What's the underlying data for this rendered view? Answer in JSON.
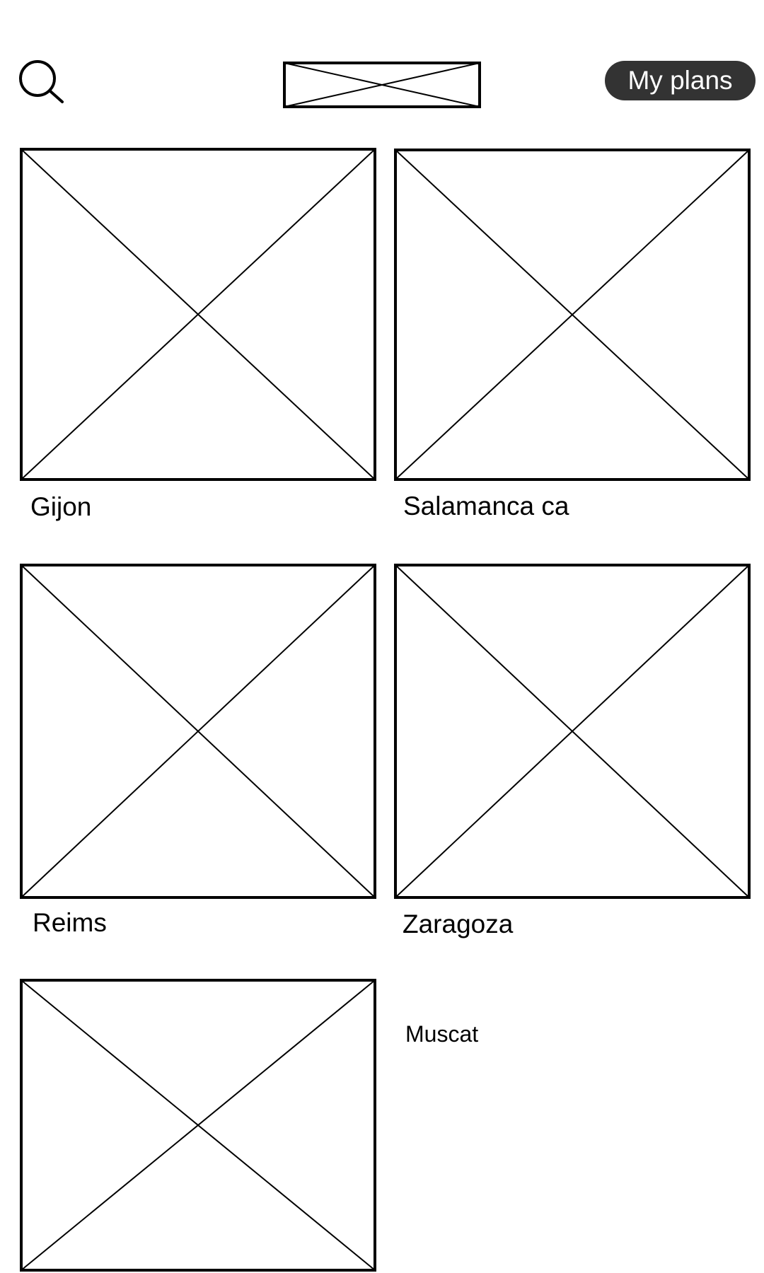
{
  "header": {
    "search_icon": "search-icon",
    "logo": "image-placeholder",
    "plans_label": "My plans",
    "plans_bg": "#333333",
    "plans_fg": "#ffffff"
  },
  "destinations": [
    {
      "name": "Gijon",
      "image": "image-placeholder"
    },
    {
      "name": "Salamanca ca",
      "image": "image-placeholder"
    },
    {
      "name": "Reims",
      "image": "image-placeholder"
    },
    {
      "name": "Zaragoza",
      "image": "image-placeholder"
    },
    {
      "name": "Muscat",
      "image": "image-placeholder"
    }
  ]
}
